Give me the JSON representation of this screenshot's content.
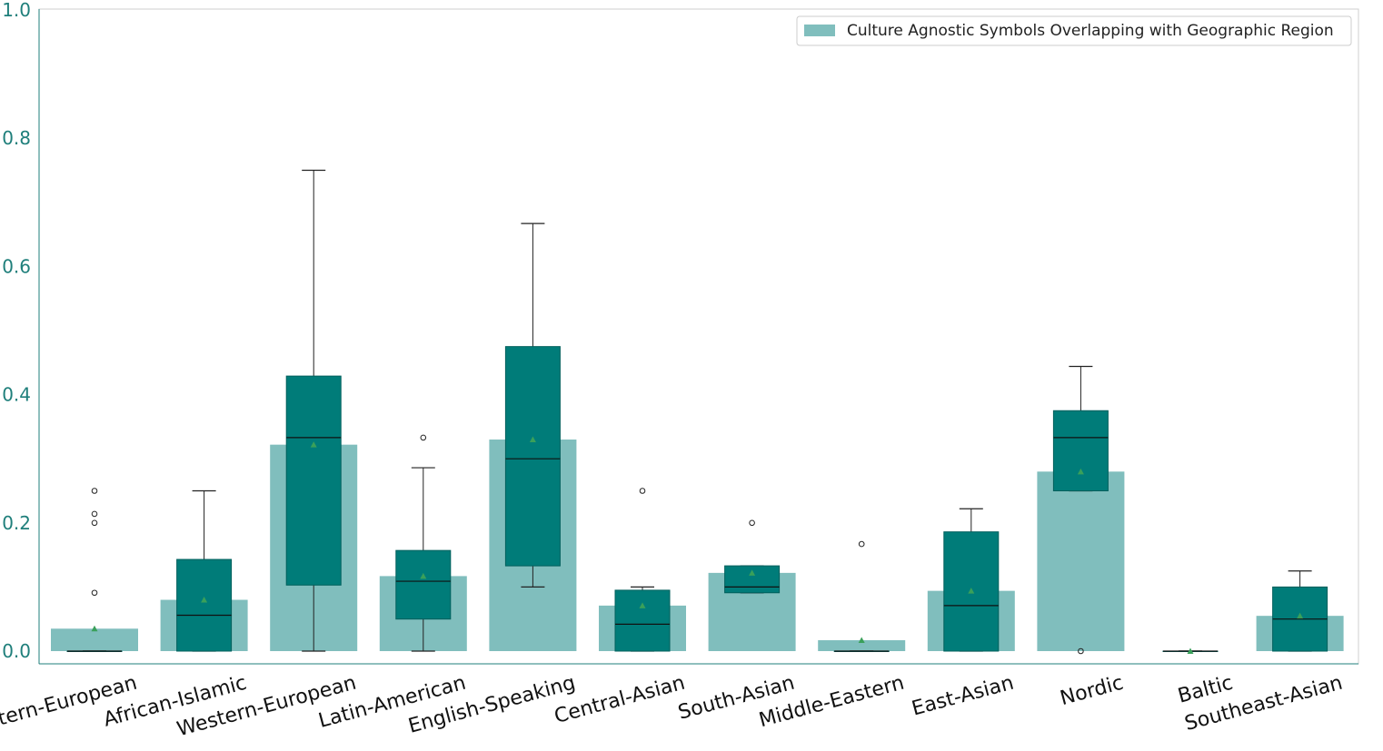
{
  "chart_data": {
    "type": "bar+box",
    "title": "",
    "xlabel": "",
    "ylabel": "",
    "ylim": [
      0,
      1.0
    ],
    "yticks": [
      "0.0",
      "0.2",
      "0.4",
      "0.6",
      "0.8",
      "1.0"
    ],
    "legend": {
      "label": "Culture Agnostic Symbols Overlapping with Geographic Region",
      "position": "top-right"
    },
    "colors": {
      "bar": "#80bebd",
      "box": "#007c79",
      "mean_marker": "#3aa05a",
      "axis_text": "#1f7f7b"
    },
    "categories": [
      "Eastern-European",
      "African-Islamic",
      "Western-European",
      "Latin-American",
      "English-Speaking",
      "Central-Asian",
      "South-Asian",
      "Middle-Eastern",
      "East-Asian",
      "Nordic",
      "Baltic",
      "Southeast-Asian"
    ],
    "bar_values": [
      0.035,
      0.08,
      0.322,
      0.117,
      0.33,
      0.071,
      0.122,
      0.017,
      0.094,
      0.28,
      0.0,
      0.055
    ],
    "boxes": [
      {
        "q1": 0.0,
        "median": 0.0,
        "q3": 0.0,
        "whislo": 0.0,
        "whishi": 0.0,
        "mean": 0.035,
        "fliers": [
          0.25,
          0.214,
          0.2,
          0.091
        ]
      },
      {
        "q1": 0.0,
        "median": 0.056,
        "q3": 0.143,
        "whislo": 0.0,
        "whishi": 0.25,
        "mean": 0.08,
        "fliers": []
      },
      {
        "q1": 0.103,
        "median": 0.333,
        "q3": 0.429,
        "whislo": 0.0,
        "whishi": 0.75,
        "mean": 0.322,
        "fliers": []
      },
      {
        "q1": 0.05,
        "median": 0.109,
        "q3": 0.157,
        "whislo": 0.0,
        "whishi": 0.286,
        "mean": 0.117,
        "fliers": [
          0.333
        ]
      },
      {
        "q1": 0.133,
        "median": 0.3,
        "q3": 0.475,
        "whislo": 0.1,
        "whishi": 0.667,
        "mean": 0.33,
        "fliers": []
      },
      {
        "q1": 0.0,
        "median": 0.042,
        "q3": 0.095,
        "whislo": 0.0,
        "whishi": 0.1,
        "mean": 0.071,
        "fliers": [
          0.25
        ]
      },
      {
        "q1": 0.091,
        "median": 0.1,
        "q3": 0.133,
        "whislo": 0.091,
        "whishi": 0.133,
        "mean": 0.122,
        "fliers": [
          0.2
        ]
      },
      {
        "q1": 0.0,
        "median": 0.0,
        "q3": 0.0,
        "whislo": 0.0,
        "whishi": 0.0,
        "mean": 0.017,
        "fliers": [
          0.167
        ]
      },
      {
        "q1": 0.0,
        "median": 0.071,
        "q3": 0.186,
        "whislo": 0.0,
        "whishi": 0.222,
        "mean": 0.094,
        "fliers": []
      },
      {
        "q1": 0.25,
        "median": 0.333,
        "q3": 0.375,
        "whislo": 0.25,
        "whishi": 0.444,
        "mean": 0.28,
        "fliers": [
          0.0
        ]
      },
      {
        "q1": 0.0,
        "median": 0.0,
        "q3": 0.0,
        "whislo": 0.0,
        "whishi": 0.0,
        "mean": 0.0,
        "fliers": []
      },
      {
        "q1": 0.0,
        "median": 0.05,
        "q3": 0.1,
        "whislo": 0.0,
        "whishi": 0.125,
        "mean": 0.055,
        "fliers": []
      }
    ]
  }
}
